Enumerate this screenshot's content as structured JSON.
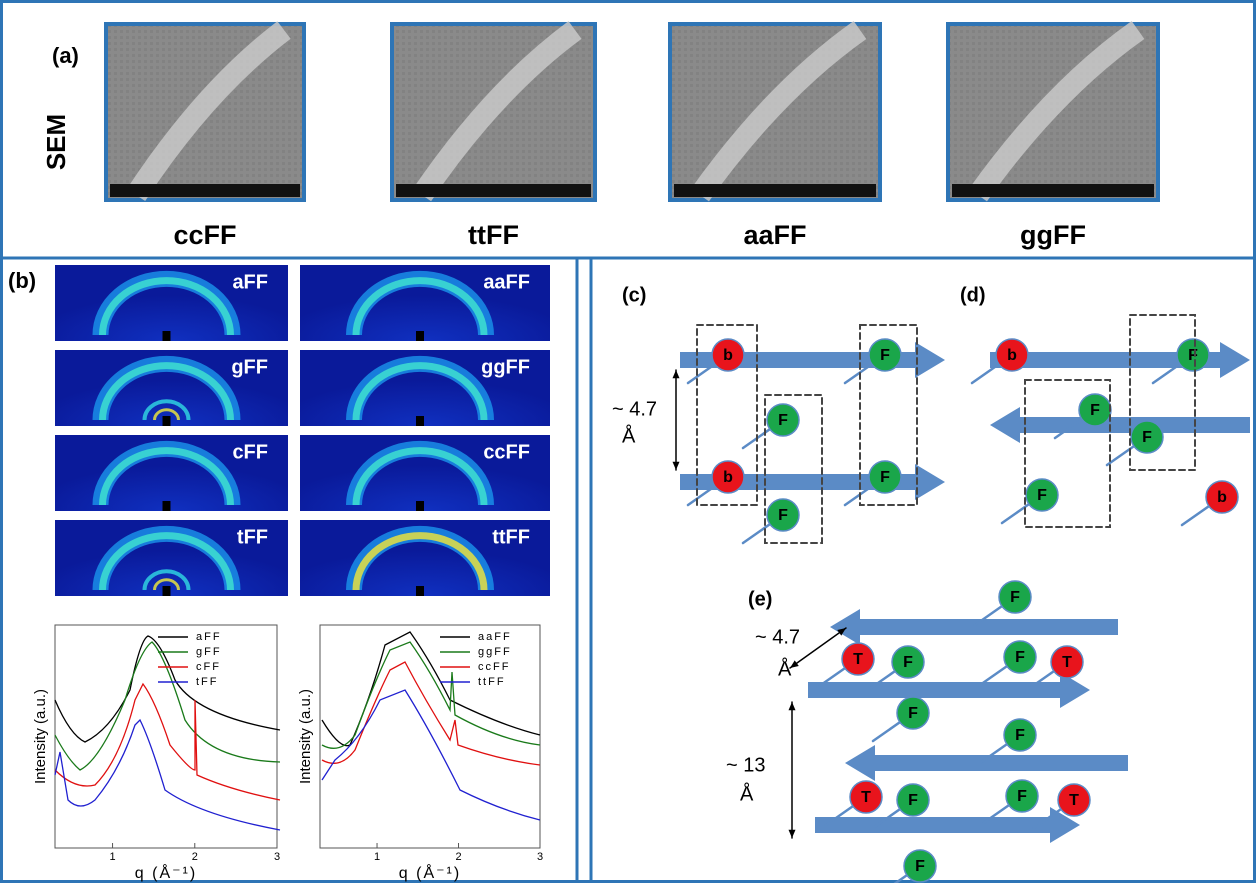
{
  "panel_a": {
    "label": "(a)",
    "row_label": "SEM",
    "samples": [
      "ccFF",
      "ttFF",
      "aaFF",
      "ggFF"
    ]
  },
  "panel_b": {
    "label": "(b)",
    "saxs_labels": [
      "aFF",
      "aaFF",
      "gFF",
      "ggFF",
      "cFF",
      "ccFF",
      "tFF",
      "ttFF"
    ],
    "plots": [
      {
        "legend": [
          "aFF",
          "gFF",
          "cFF",
          "tFF"
        ],
        "colors": [
          "#000000",
          "#1a7a1a",
          "#e01010",
          "#2020d0"
        ],
        "y_label": "Intensity (a.u.)",
        "x_label": "q (Å⁻¹)",
        "xlim": [
          0.3,
          3
        ],
        "xticks": [
          1,
          2,
          3
        ]
      },
      {
        "legend": [
          "aaFF",
          "ggFF",
          "ccFF",
          "ttFF"
        ],
        "colors": [
          "#000000",
          "#1a7a1a",
          "#e01010",
          "#2020d0"
        ],
        "y_label": "Intensity (a.u.)",
        "x_label": "q (Å⁻¹)",
        "xlim": [
          0.3,
          3
        ],
        "xticks": [
          1,
          2,
          3
        ]
      }
    ]
  },
  "panel_c": {
    "label": "(c)",
    "spacing": [
      "~ 4.7",
      "Å"
    ],
    "residues": [
      "b",
      "b",
      "F",
      "F",
      "F",
      "F"
    ]
  },
  "panel_d": {
    "label": "(d)",
    "residues": [
      "b",
      "F",
      "F",
      "F",
      "F",
      "b"
    ]
  },
  "panel_e": {
    "label": "(e)",
    "spacing_1": [
      "~ 4.7",
      "Å"
    ],
    "spacing_2": [
      "~ 13",
      "Å"
    ],
    "residues": [
      "F",
      "T",
      "F",
      "F",
      "T",
      "F",
      "F",
      "T",
      "F",
      "F",
      "T",
      "F"
    ]
  }
}
